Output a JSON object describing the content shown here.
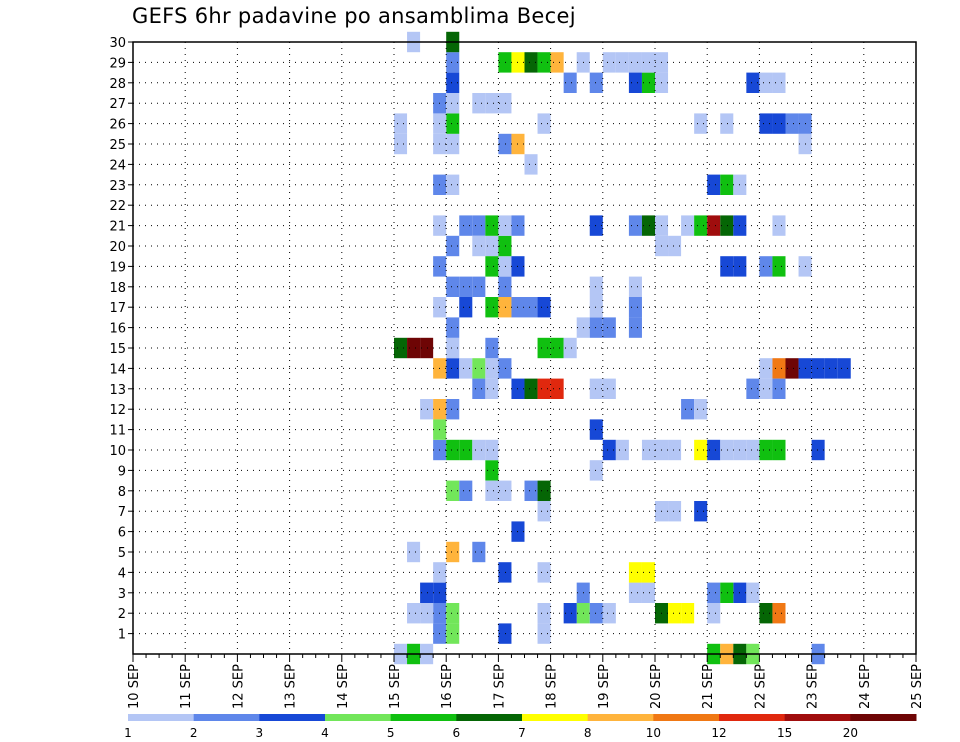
{
  "chart_data": {
    "type": "heatmap",
    "title": "GEFS 6hr padavine po ansamblima Becej",
    "xlabel": "",
    "ylabel": "",
    "x_tick_labels": [
      "10 SEP",
      "11 SEP",
      "12 SEP",
      "13 SEP",
      "14 SEP",
      "15 SEP",
      "16 SEP",
      "17 SEP",
      "18 SEP",
      "19 SEP",
      "20 SEP",
      "21 SEP",
      "22 SEP",
      "23 SEP",
      "24 SEP",
      "25 SEP"
    ],
    "xlim": [
      "10 SEP 00h",
      "25 SEP 00h"
    ],
    "time_step_hours": 6,
    "ylim": [
      0,
      30
    ],
    "y_tick_labels": [
      1,
      2,
      3,
      4,
      5,
      6,
      7,
      8,
      9,
      10,
      11,
      12,
      13,
      14,
      15,
      16,
      17,
      18,
      19,
      20,
      21,
      22,
      23,
      24,
      25,
      26,
      27,
      28,
      29,
      30
    ],
    "grid": true,
    "colorbar": {
      "placement": "bottom",
      "boundaries": [
        1,
        2,
        3,
        4,
        5,
        6,
        7,
        8,
        10,
        12,
        15,
        20
      ],
      "colors": [
        "#b4c6f5",
        "#5f87ea",
        "#1748d6",
        "#72e65a",
        "#10c010",
        "#056605",
        "#ffff00",
        "#ffb43c",
        "#f07814",
        "#e0280e",
        "#a00d0d",
        "#6e0505"
      ]
    },
    "legend": "colorbar-bottom",
    "cells_format": "[day_index_from_10_SEP, six_hour_slot_0_to_3, ensemble_member, color_class_0_to_11]",
    "cells": [
      [
        5,
        0,
        0,
        0
      ],
      [
        5,
        1,
        0,
        4
      ],
      [
        5,
        2,
        0,
        0
      ],
      [
        5,
        3,
        1,
        1
      ],
      [
        5,
        3,
        2,
        1
      ],
      [
        5,
        3,
        3,
        2
      ],
      [
        5,
        3,
        4,
        0
      ],
      [
        6,
        0,
        1,
        3
      ],
      [
        6,
        0,
        2,
        3
      ],
      [
        6,
        0,
        5,
        7
      ],
      [
        6,
        0,
        12,
        1
      ],
      [
        6,
        0,
        14,
        2
      ],
      [
        6,
        0,
        15,
        0
      ],
      [
        6,
        0,
        16,
        1
      ],
      [
        6,
        0,
        20,
        1
      ],
      [
        6,
        0,
        25,
        0
      ],
      [
        6,
        0,
        26,
        4
      ],
      [
        6,
        0,
        28,
        2
      ],
      [
        6,
        0,
        29,
        1
      ],
      [
        6,
        0,
        30,
        5
      ],
      [
        5,
        2,
        12,
        0
      ],
      [
        5,
        3,
        1,
        1
      ],
      [
        5,
        3,
        25,
        0
      ],
      [
        5,
        3,
        26,
        0
      ],
      [
        5,
        3,
        27,
        1
      ],
      [
        5,
        0,
        15,
        5
      ],
      [
        5,
        1,
        15,
        11
      ],
      [
        5,
        2,
        15,
        11
      ],
      [
        5,
        0,
        25,
        0
      ],
      [
        5,
        0,
        26,
        0
      ],
      [
        5,
        1,
        30,
        0
      ],
      [
        5,
        1,
        5,
        0
      ],
      [
        5,
        2,
        3,
        2
      ],
      [
        5,
        3,
        3,
        10
      ],
      [
        5,
        2,
        2,
        0
      ],
      [
        5,
        1,
        2,
        0
      ],
      [
        5,
        3,
        10,
        1
      ],
      [
        5,
        3,
        12,
        7
      ],
      [
        5,
        3,
        11,
        3
      ],
      [
        5,
        3,
        14,
        7
      ],
      [
        5,
        3,
        17,
        0
      ],
      [
        5,
        3,
        19,
        1
      ],
      [
        5,
        3,
        21,
        0
      ],
      [
        5,
        3,
        23,
        1
      ],
      [
        5,
        3,
        27,
        0
      ],
      [
        6,
        0,
        1,
        3
      ],
      [
        6,
        0,
        10,
        4
      ],
      [
        6,
        1,
        10,
        4
      ],
      [
        6,
        2,
        10,
        0
      ],
      [
        6,
        0,
        8,
        3
      ],
      [
        6,
        1,
        8,
        1
      ],
      [
        6,
        2,
        5,
        1
      ],
      [
        6,
        1,
        17,
        2
      ],
      [
        6,
        1,
        21,
        1
      ],
      [
        6,
        2,
        21,
        1
      ],
      [
        6,
        0,
        18,
        1
      ],
      [
        6,
        1,
        18,
        1
      ],
      [
        6,
        2,
        18,
        1
      ],
      [
        6,
        1,
        14,
        0
      ],
      [
        6,
        2,
        14,
        3
      ],
      [
        6,
        3,
        14,
        0
      ],
      [
        6,
        0,
        16,
        0
      ],
      [
        6,
        2,
        20,
        0
      ],
      [
        6,
        3,
        20,
        0
      ],
      [
        6,
        3,
        19,
        4
      ],
      [
        6,
        3,
        21,
        4
      ],
      [
        6,
        2,
        13,
        1
      ],
      [
        6,
        3,
        13,
        0
      ],
      [
        6,
        3,
        15,
        1
      ],
      [
        6,
        0,
        20,
        5
      ],
      [
        6,
        0,
        27,
        0
      ],
      [
        6,
        2,
        27,
        0
      ],
      [
        6,
        3,
        27,
        0
      ],
      [
        6,
        0,
        29,
        0
      ],
      [
        6,
        3,
        9,
        4
      ],
      [
        6,
        3,
        17,
        4
      ],
      [
        6,
        3,
        8,
        0
      ],
      [
        6,
        3,
        21,
        5
      ],
      [
        6,
        3,
        10,
        0
      ],
      [
        6,
        0,
        23,
        0
      ],
      [
        7,
        0,
        1,
        2
      ],
      [
        7,
        0,
        4,
        2
      ],
      [
        7,
        0,
        14,
        1
      ],
      [
        7,
        0,
        17,
        7
      ],
      [
        7,
        1,
        17,
        1
      ],
      [
        7,
        2,
        17,
        1
      ],
      [
        7,
        0,
        18,
        1
      ],
      [
        7,
        0,
        19,
        0
      ],
      [
        7,
        0,
        20,
        4
      ],
      [
        7,
        0,
        21,
        0
      ],
      [
        7,
        0,
        25,
        1
      ],
      [
        7,
        1,
        25,
        7
      ],
      [
        7,
        0,
        29,
        4
      ],
      [
        7,
        1,
        29,
        6
      ],
      [
        7,
        2,
        29,
        5
      ],
      [
        7,
        3,
        26,
        0
      ],
      [
        7,
        1,
        13,
        2
      ],
      [
        7,
        2,
        13,
        5
      ],
      [
        7,
        3,
        13,
        9
      ],
      [
        7,
        1,
        19,
        2
      ],
      [
        7,
        1,
        6,
        2
      ],
      [
        7,
        3,
        1,
        0
      ],
      [
        7,
        3,
        2,
        0
      ],
      [
        7,
        3,
        4,
        0
      ],
      [
        7,
        3,
        7,
        0
      ],
      [
        7,
        2,
        8,
        1
      ],
      [
        7,
        3,
        8,
        5
      ],
      [
        7,
        3,
        15,
        4
      ],
      [
        7,
        3,
        17,
        2
      ],
      [
        7,
        1,
        21,
        1
      ],
      [
        7,
        0,
        8,
        0
      ],
      [
        7,
        0,
        27,
        0
      ],
      [
        7,
        2,
        24,
        0
      ],
      [
        7,
        0,
        8,
        0
      ],
      [
        7,
        3,
        29,
        4
      ],
      [
        8,
        0,
        29,
        7
      ],
      [
        8,
        0,
        13,
        9
      ],
      [
        8,
        0,
        15,
        4
      ],
      [
        8,
        1,
        28,
        1
      ],
      [
        8,
        1,
        28,
        3
      ],
      [
        8,
        2,
        29,
        0
      ],
      [
        8,
        1,
        15,
        0
      ],
      [
        8,
        2,
        16,
        0
      ],
      [
        8,
        2,
        3,
        1
      ],
      [
        8,
        2,
        2,
        3
      ],
      [
        8,
        3,
        2,
        1
      ],
      [
        8,
        3,
        9,
        0
      ],
      [
        8,
        3,
        11,
        2
      ],
      [
        8,
        3,
        18,
        0
      ],
      [
        8,
        3,
        21,
        2
      ],
      [
        8,
        1,
        2,
        2
      ],
      [
        8,
        3,
        28,
        1
      ],
      [
        8,
        3,
        18,
        1
      ],
      [
        8,
        3,
        16,
        1
      ],
      [
        8,
        3,
        17,
        0
      ],
      [
        8,
        3,
        13,
        0
      ],
      [
        9,
        0,
        10,
        2
      ],
      [
        9,
        0,
        13,
        0
      ],
      [
        9,
        0,
        29,
        0
      ],
      [
        9,
        1,
        29,
        0
      ],
      [
        9,
        2,
        29,
        0
      ],
      [
        9,
        1,
        10,
        0
      ],
      [
        9,
        0,
        16,
        1
      ],
      [
        9,
        2,
        17,
        1
      ],
      [
        9,
        2,
        17,
        9
      ],
      [
        9,
        2,
        16,
        1
      ],
      [
        9,
        2,
        18,
        0
      ],
      [
        9,
        0,
        2,
        0
      ],
      [
        9,
        2,
        28,
        2
      ],
      [
        9,
        3,
        28,
        4
      ],
      [
        9,
        3,
        29,
        0
      ],
      [
        9,
        2,
        3,
        0
      ],
      [
        9,
        3,
        3,
        0
      ],
      [
        9,
        2,
        4,
        6
      ],
      [
        9,
        3,
        4,
        6
      ],
      [
        9,
        3,
        10,
        0
      ],
      [
        9,
        2,
        21,
        1
      ],
      [
        9,
        3,
        21,
        5
      ],
      [
        10,
        0,
        2,
        5
      ],
      [
        10,
        0,
        7,
        0
      ],
      [
        10,
        1,
        7,
        0
      ],
      [
        10,
        0,
        10,
        0
      ],
      [
        10,
        1,
        10,
        0
      ],
      [
        10,
        0,
        20,
        0
      ],
      [
        10,
        1,
        20,
        0
      ],
      [
        10,
        2,
        21,
        0
      ],
      [
        10,
        3,
        21,
        4
      ],
      [
        10,
        2,
        21,
        5
      ],
      [
        10,
        1,
        2,
        6
      ],
      [
        10,
        2,
        2,
        6
      ],
      [
        10,
        3,
        7,
        2
      ],
      [
        10,
        3,
        10,
        6
      ],
      [
        10,
        0,
        21,
        0
      ],
      [
        10,
        0,
        28,
        0
      ],
      [
        10,
        0,
        29,
        0
      ],
      [
        10,
        2,
        12,
        1
      ],
      [
        10,
        3,
        12,
        0
      ],
      [
        10,
        3,
        26,
        0
      ],
      [
        11,
        0,
        0,
        4
      ],
      [
        11,
        1,
        0,
        7
      ],
      [
        11,
        2,
        0,
        5
      ],
      [
        11,
        3,
        0,
        3
      ],
      [
        11,
        0,
        2,
        0
      ],
      [
        11,
        0,
        3,
        1
      ],
      [
        11,
        0,
        10,
        2
      ],
      [
        11,
        1,
        10,
        0
      ],
      [
        11,
        2,
        10,
        0
      ],
      [
        11,
        3,
        10,
        0
      ],
      [
        11,
        0,
        21,
        10
      ],
      [
        11,
        1,
        21,
        5
      ],
      [
        11,
        2,
        21,
        2
      ],
      [
        11,
        3,
        28,
        2
      ],
      [
        11,
        3,
        28,
        6
      ],
      [
        11,
        2,
        3,
        2
      ],
      [
        11,
        3,
        3,
        0
      ],
      [
        11,
        0,
        23,
        2
      ],
      [
        11,
        1,
        23,
        4
      ],
      [
        11,
        2,
        23,
        0
      ],
      [
        11,
        1,
        19,
        2
      ],
      [
        11,
        2,
        19,
        2
      ],
      [
        11,
        3,
        13,
        1
      ],
      [
        11,
        1,
        26,
        0
      ],
      [
        11,
        0,
        3,
        0
      ],
      [
        11,
        1,
        3,
        4
      ],
      [
        12,
        0,
        10,
        4
      ],
      [
        12,
        1,
        10,
        4
      ],
      [
        12,
        0,
        2,
        5
      ],
      [
        12,
        1,
        2,
        8
      ],
      [
        12,
        0,
        14,
        0
      ],
      [
        12,
        1,
        14,
        8
      ],
      [
        12,
        2,
        14,
        11
      ],
      [
        12,
        3,
        14,
        2
      ],
      [
        12,
        0,
        13,
        0
      ],
      [
        12,
        1,
        13,
        1
      ],
      [
        12,
        0,
        19,
        1
      ],
      [
        12,
        1,
        19,
        4
      ],
      [
        12,
        0,
        26,
        2
      ],
      [
        12,
        1,
        26,
        2
      ],
      [
        12,
        2,
        26,
        1
      ],
      [
        12,
        0,
        28,
        0
      ],
      [
        12,
        1,
        28,
        0
      ],
      [
        12,
        3,
        25,
        0
      ],
      [
        12,
        2,
        26,
        0
      ],
      [
        12,
        3,
        26,
        1
      ],
      [
        12,
        1,
        21,
        0
      ],
      [
        12,
        3,
        19,
        0
      ],
      [
        13,
        0,
        14,
        2
      ],
      [
        13,
        1,
        14,
        2
      ],
      [
        13,
        2,
        14,
        2
      ],
      [
        13,
        0,
        10,
        2
      ],
      [
        13,
        0,
        0,
        1
      ]
    ]
  }
}
